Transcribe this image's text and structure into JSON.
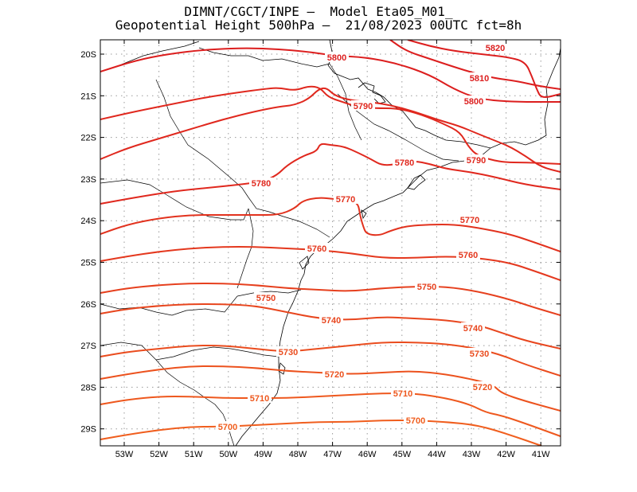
{
  "title": {
    "line1": "DIMNT/CGCT/INPE –  Model Eta05_M01_",
    "line2": "Geopotential Height 500hPa –  21/08/2023 00UTC fct=8h"
  },
  "axes": {
    "lat_labels": [
      "20S",
      "21S",
      "22S",
      "23S",
      "24S",
      "25S",
      "26S",
      "27S",
      "28S",
      "29S"
    ],
    "lon_labels": [
      "53W",
      "52W",
      "51W",
      "50W",
      "49W",
      "48W",
      "47W",
      "46W",
      "45W",
      "44W",
      "43W",
      "42W",
      "41W"
    ]
  },
  "contours": [
    {
      "value": "5820",
      "color": "#dc1e1e"
    },
    {
      "value": "5810",
      "color": "#dc1e1e"
    },
    {
      "value": "5800",
      "color": "#dc1e1e"
    },
    {
      "value": "5790",
      "color": "#e0281e"
    },
    {
      "value": "5780",
      "color": "#e0281e"
    },
    {
      "value": "5770",
      "color": "#e2321e"
    },
    {
      "value": "5760",
      "color": "#e4381e"
    },
    {
      "value": "5750",
      "color": "#e6401e"
    },
    {
      "value": "5740",
      "color": "#e8461e"
    },
    {
      "value": "5730",
      "color": "#ea4c1e"
    },
    {
      "value": "5720",
      "color": "#ec521e"
    },
    {
      "value": "5710",
      "color": "#ee581e"
    },
    {
      "value": "5700",
      "color": "#f05e1e"
    }
  ],
  "colors": {
    "coastline": "#000000",
    "grid": "#999999",
    "frame": "#000000"
  }
}
